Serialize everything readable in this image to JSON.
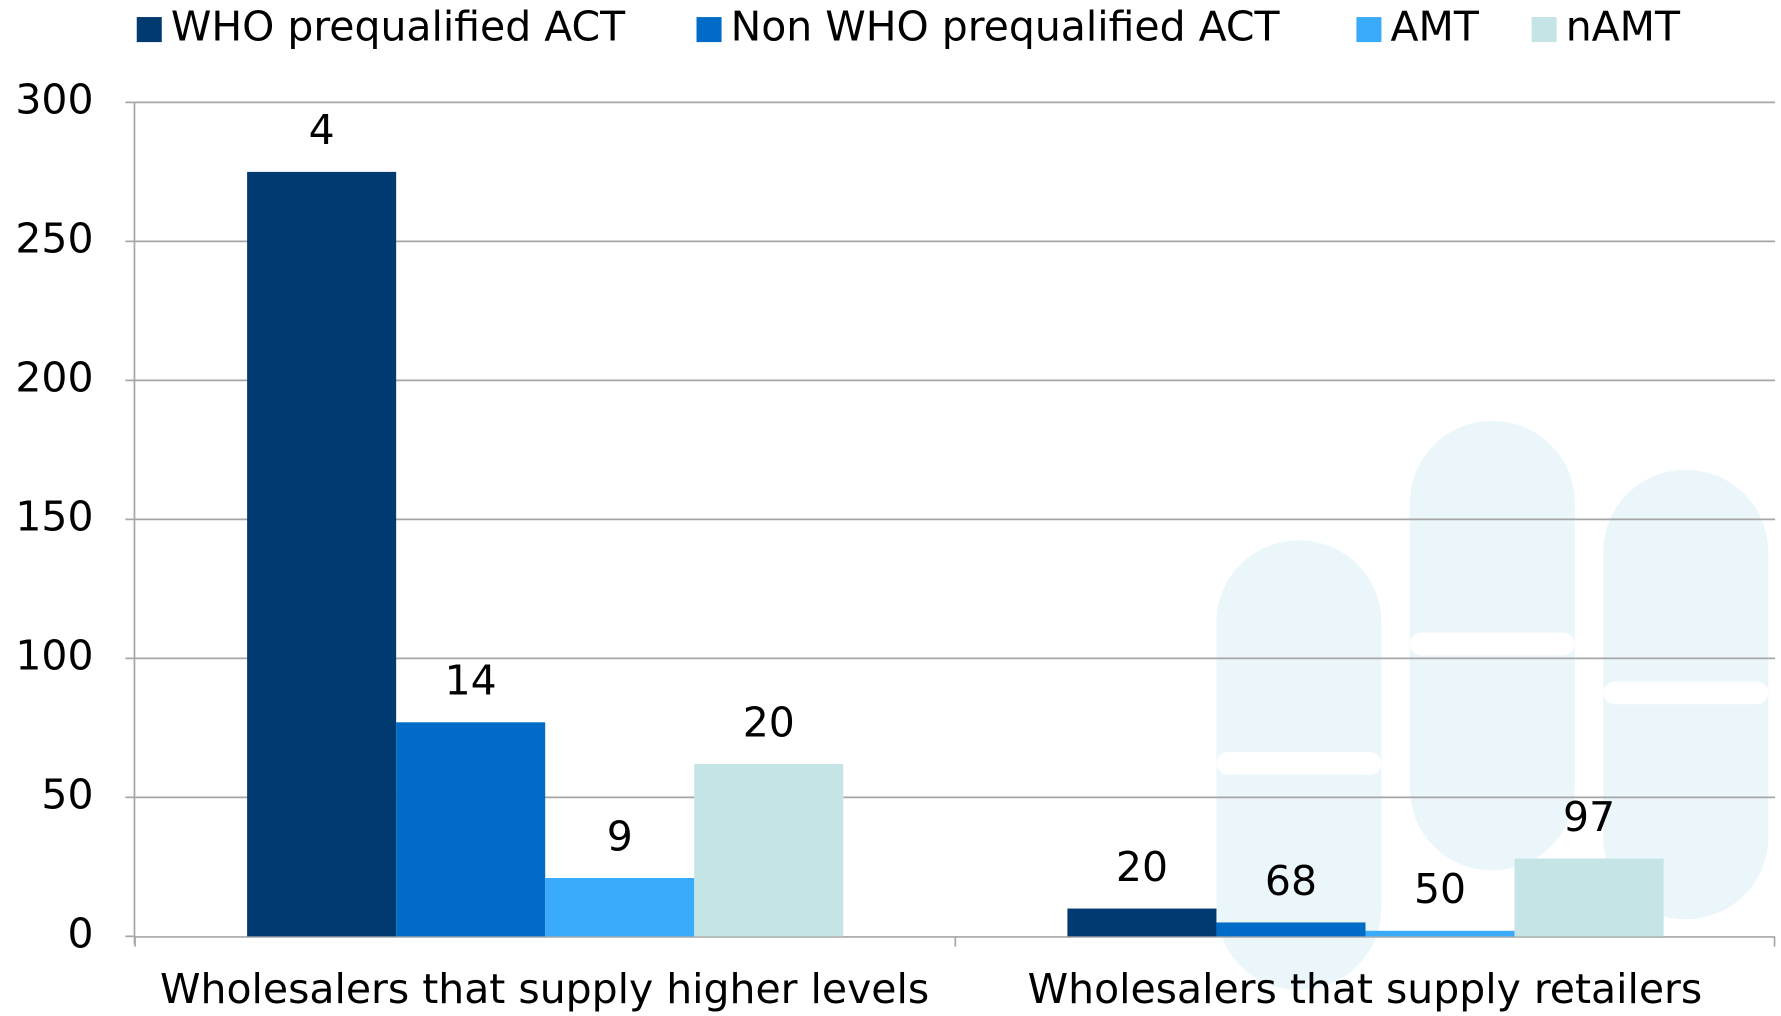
{
  "chart_data": {
    "type": "bar",
    "categories": [
      "Wholesalers that supply higher levels",
      "Wholesalers that supply retailers"
    ],
    "series": [
      {
        "name": "WHO prequalified ACT",
        "color": "#003a70",
        "values": [
          275,
          10
        ],
        "labels": [
          4,
          20
        ]
      },
      {
        "name": "Non WHO prequalified ACT",
        "color": "#006cc8",
        "values": [
          77,
          5
        ],
        "labels": [
          14,
          68
        ]
      },
      {
        "name": "AMT",
        "color": "#3aaafa",
        "values": [
          21,
          2
        ],
        "labels": [
          9,
          50
        ]
      },
      {
        "name": "nAMT",
        "color": "#c5e4e6",
        "values": [
          62,
          28
        ],
        "labels": [
          20,
          97
        ]
      }
    ],
    "ylim": [
      0,
      300
    ],
    "yticks": [
      0,
      50,
      100,
      150,
      200,
      250,
      300
    ],
    "grid": true,
    "legend": "top"
  }
}
